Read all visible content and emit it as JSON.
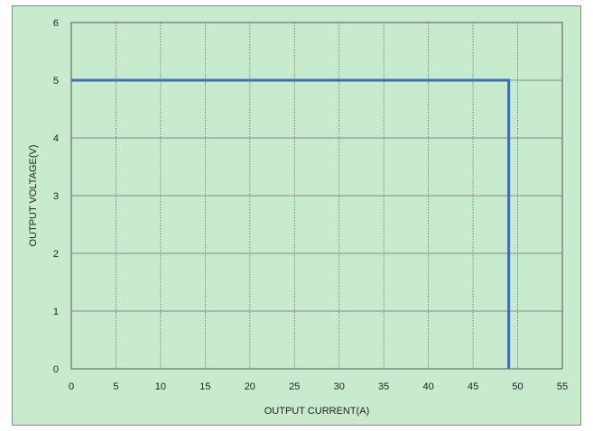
{
  "chart_data": {
    "type": "line",
    "title": "",
    "xlabel": "OUTPUT CURRENT(A)",
    "ylabel": "OUTPUT VOLTAGE(V)",
    "xlim": [
      0,
      55
    ],
    "ylim": [
      0,
      6
    ],
    "xticks": [
      0,
      5,
      10,
      15,
      20,
      25,
      30,
      35,
      40,
      45,
      50,
      55
    ],
    "yticks": [
      0,
      1,
      2,
      3,
      4,
      5,
      6
    ],
    "grid": true,
    "legend": "none",
    "series": [
      {
        "x": [
          0,
          49,
          49
        ],
        "y": [
          5,
          5,
          0
        ],
        "color": "#3b6fb3"
      }
    ]
  },
  "colors": {
    "plot_background": "#c8ebcd",
    "grid": "#6f6f6f",
    "axis": "#555555",
    "line": "#3b6fb3"
  }
}
